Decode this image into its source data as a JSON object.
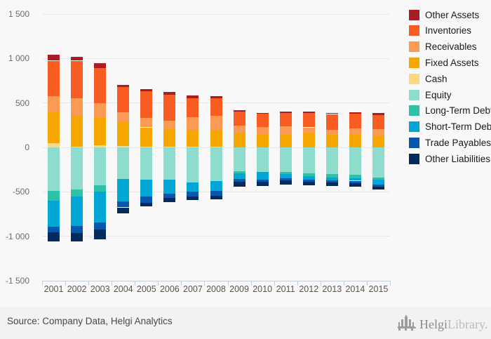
{
  "chart_data": {
    "type": "bar",
    "stacked": true,
    "title": "",
    "xlabel": "",
    "ylabel": "",
    "ylim": [
      -1500,
      1500
    ],
    "grid": true,
    "legend_position": "right",
    "categories": [
      "2001",
      "2002",
      "2003",
      "2004",
      "2005",
      "2006",
      "2007",
      "2008",
      "2009",
      "2010",
      "2011",
      "2012",
      "2013",
      "2014",
      "2015"
    ],
    "y_ticks": [
      {
        "value": 1500,
        "label": "1 500"
      },
      {
        "value": 1000,
        "label": "1 000"
      },
      {
        "value": 500,
        "label": "500"
      },
      {
        "value": 0,
        "label": "0"
      },
      {
        "value": -500,
        "label": "-500"
      },
      {
        "value": -1000,
        "label": "-1 000"
      },
      {
        "value": -1500,
        "label": "-1 500"
      }
    ],
    "legend_order": [
      "Other Assets",
      "Inventories",
      "Receivables",
      "Fixed Assets",
      "Cash",
      "Equity",
      "Long-Term Debt",
      "Short-Term Debt",
      "Trade Payables",
      "Other Liabilities"
    ],
    "positive_stack": [
      "Cash",
      "Fixed Assets",
      "Receivables",
      "Inventories",
      "Other Assets"
    ],
    "negative_stack": [
      "Equity",
      "Long-Term Debt",
      "Short-Term Debt",
      "Trade Payables",
      "Other Liabilities"
    ],
    "series": {
      "Other Assets": {
        "color": "#a81c22",
        "values": [
          70,
          45,
          55,
          25,
          20,
          30,
          30,
          25,
          15,
          10,
          15,
          15,
          15,
          15,
          25
        ]
      },
      "Inventories": {
        "color": "#f85c20",
        "values": [
          400,
          425,
          400,
          285,
          305,
          290,
          215,
          195,
          160,
          150,
          150,
          160,
          175,
          170,
          160
        ]
      },
      "Receivables": {
        "color": "#fb9a55",
        "values": [
          180,
          195,
          165,
          105,
          105,
          95,
          145,
          165,
          85,
          80,
          90,
          70,
          55,
          70,
          75
        ]
      },
      "Fixed Assets": {
        "color": "#f5a700",
        "values": [
          350,
          345,
          310,
          275,
          215,
          195,
          190,
          185,
          160,
          150,
          145,
          155,
          145,
          140,
          130
        ]
      },
      "Cash": {
        "color": "#fbd881",
        "values": [
          45,
          10,
          20,
          15,
          10,
          10,
          5,
          5,
          0,
          0,
          0,
          0,
          0,
          0,
          0
        ]
      },
      "Equity": {
        "color": "#8edccd",
        "values": [
          490,
          475,
          425,
          355,
          360,
          365,
          395,
          380,
          270,
          275,
          280,
          290,
          300,
          305,
          340
        ]
      },
      "Long-Term Debt": {
        "color": "#2dc1a6",
        "values": [
          110,
          75,
          75,
          0,
          0,
          0,
          0,
          0,
          20,
          0,
          20,
          30,
          40,
          40,
          20
        ]
      },
      "Short-Term Debt": {
        "color": "#00a7d6",
        "values": [
          295,
          335,
          345,
          255,
          195,
          155,
          105,
          110,
          65,
          85,
          45,
          40,
          30,
          30,
          55
        ]
      },
      "Trade Payables": {
        "color": "#0757ae",
        "values": [
          60,
          75,
          80,
          65,
          70,
          50,
          50,
          55,
          35,
          25,
          25,
          25,
          25,
          25,
          30
        ]
      },
      "Other Liabilities": {
        "color": "#052a5e",
        "values": [
          105,
          100,
          110,
          65,
          40,
          45,
          45,
          40,
          50,
          50,
          45,
          40,
          40,
          40,
          30
        ]
      }
    }
  },
  "footer": {
    "source": "Source: Company Data, Helgi Analytics"
  },
  "logo": {
    "brand_primary": "Helgi",
    "brand_secondary": "Library."
  }
}
